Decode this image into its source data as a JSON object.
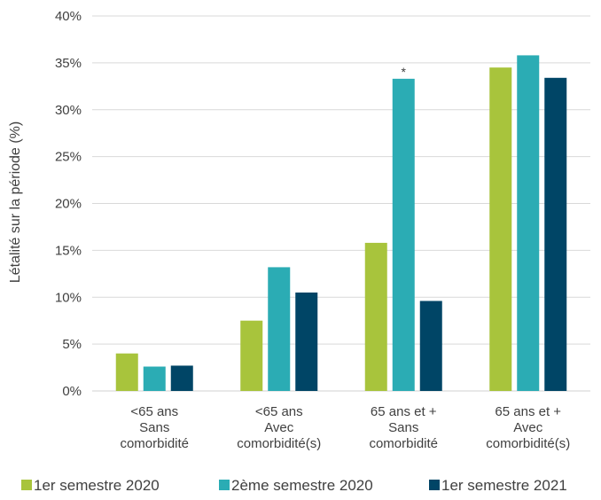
{
  "chart_data": {
    "type": "bar",
    "ylabel": "Létalité sur la période (%)",
    "ylim": [
      0,
      40
    ],
    "yticks": [
      "0%",
      "5%",
      "10%",
      "15%",
      "20%",
      "25%",
      "30%",
      "35%",
      "40%"
    ],
    "grid": "horizontal",
    "legend_position": "bottom",
    "categories": [
      [
        "<65 ans",
        "Sans",
        "comorbidité"
      ],
      [
        "<65 ans",
        "Avec",
        "comorbidité(s)"
      ],
      [
        "65 ans et +",
        "Sans",
        "comorbidité"
      ],
      [
        "65 ans et +",
        "Avec",
        "comorbidité(s)"
      ]
    ],
    "series": [
      {
        "name": "1er semestre 2020",
        "color": "#a8c43c",
        "values": [
          4.0,
          7.5,
          15.8,
          34.5
        ]
      },
      {
        "name": "2ème semestre 2020",
        "color": "#2bacb4",
        "values": [
          2.6,
          13.2,
          33.3,
          35.8
        ]
      },
      {
        "name": "1er semestre 2021",
        "color": "#004566",
        "values": [
          2.7,
          10.5,
          9.6,
          33.4
        ]
      }
    ],
    "annotations": [
      {
        "text": "*",
        "category_index": 2,
        "series_index": 1
      }
    ]
  }
}
